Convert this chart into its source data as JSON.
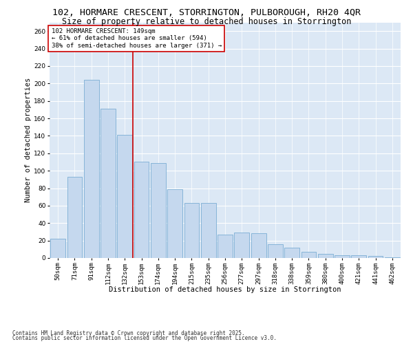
{
  "title_line1": "102, HORMARE CRESCENT, STORRINGTON, PULBOROUGH, RH20 4QR",
  "title_line2": "Size of property relative to detached houses in Storrington",
  "xlabel": "Distribution of detached houses by size in Storrington",
  "ylabel": "Number of detached properties",
  "categories": [
    "50sqm",
    "71sqm",
    "91sqm",
    "112sqm",
    "132sqm",
    "153sqm",
    "174sqm",
    "194sqm",
    "215sqm",
    "235sqm",
    "256sqm",
    "277sqm",
    "297sqm",
    "318sqm",
    "338sqm",
    "359sqm",
    "380sqm",
    "400sqm",
    "421sqm",
    "441sqm",
    "462sqm"
  ],
  "values": [
    22,
    93,
    204,
    171,
    141,
    110,
    109,
    79,
    63,
    63,
    27,
    29,
    28,
    16,
    12,
    7,
    5,
    3,
    3,
    2,
    1
  ],
  "bar_color": "#c5d8ee",
  "bar_edge_color": "#7aadd4",
  "reference_line_color": "#cc0000",
  "reference_line_index": 5,
  "annotation_text": "102 HORMARE CRESCENT: 149sqm\n← 61% of detached houses are smaller (594)\n38% of semi-detached houses are larger (371) →",
  "annotation_box_color": "#ffffff",
  "annotation_box_edge": "#cc0000",
  "ylim": [
    0,
    270
  ],
  "yticks": [
    0,
    20,
    40,
    60,
    80,
    100,
    120,
    140,
    160,
    180,
    200,
    220,
    240,
    260
  ],
  "background_color": "#dce8f5",
  "grid_color": "#ffffff",
  "footer_line1": "Contains HM Land Registry data © Crown copyright and database right 2025.",
  "footer_line2": "Contains public sector information licensed under the Open Government Licence v3.0.",
  "title_fontsize": 9.5,
  "subtitle_fontsize": 8.5,
  "axis_label_fontsize": 7.5,
  "tick_fontsize": 6.5,
  "annotation_fontsize": 6.5,
  "footer_fontsize": 5.5
}
